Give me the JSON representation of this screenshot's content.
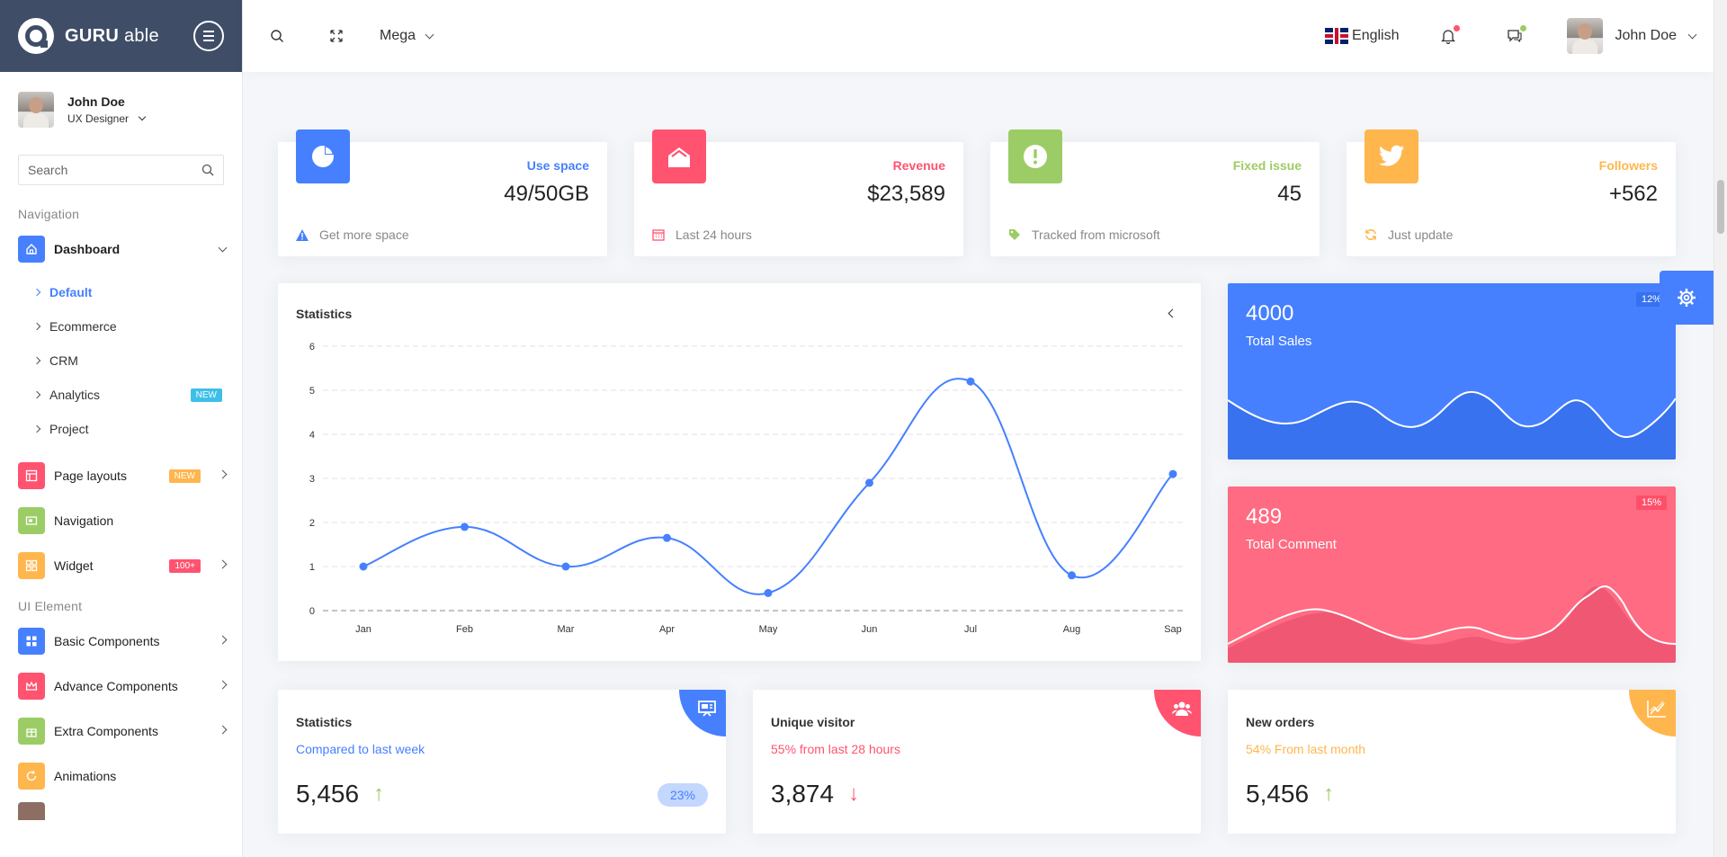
{
  "brand": {
    "name_bold": "GURU",
    "name_light": "able"
  },
  "sidebar": {
    "user": {
      "name": "John Doe",
      "role": "UX Designer"
    },
    "search_placeholder": "Search",
    "section_navigation": "Navigation",
    "section_ui": "UI Element",
    "dashboard": {
      "label": "Dashboard",
      "color": "#4680ff",
      "children": [
        {
          "label": "Default"
        },
        {
          "label": "Ecommerce"
        },
        {
          "label": "CRM"
        },
        {
          "label": "Analytics",
          "badge": "NEW",
          "badge_color": "#3ebfea"
        },
        {
          "label": "Project"
        }
      ]
    },
    "items": [
      {
        "label": "Page layouts",
        "color": "#ff5370",
        "badge": "NEW",
        "badge_color": "#ffb64d",
        "icon": "layout-icon"
      },
      {
        "label": "Navigation",
        "color": "#9ccc65",
        "icon": "nav-icon"
      },
      {
        "label": "Widget",
        "color": "#ffb64d",
        "badge": "100+",
        "badge_color": "#ff5370",
        "icon": "widget-icon"
      }
    ],
    "ui_items": [
      {
        "label": "Basic Components",
        "color": "#4680ff",
        "icon": "grid-icon"
      },
      {
        "label": "Advance Components",
        "color": "#ff5370",
        "icon": "crown-icon"
      },
      {
        "label": "Extra Components",
        "color": "#9ccc65",
        "icon": "gift-icon"
      },
      {
        "label": "Animations",
        "color": "#ffb64d",
        "icon": "refresh-icon"
      }
    ]
  },
  "header": {
    "mega_label": "Mega",
    "language": "English",
    "user_name": "John Doe"
  },
  "widgets": [
    {
      "label": "Use space",
      "value": "49/50GB",
      "footer": "Get more space",
      "color": "#4680ff",
      "icon": "pie-icon",
      "footer_icon": "warning-icon"
    },
    {
      "label": "Revenue",
      "value": "$23,589",
      "footer": "Last 24 hours",
      "color": "#ff5370",
      "icon": "home-icon",
      "footer_icon": "calendar-icon"
    },
    {
      "label": "Fixed issue",
      "value": "45",
      "footer": "Tracked from microsoft",
      "color": "#9ccc65",
      "icon": "alert-icon",
      "footer_icon": "tag-icon"
    },
    {
      "label": "Followers",
      "value": "+562",
      "footer": "Just update",
      "color": "#ffb64d",
      "icon": "twitter-icon",
      "footer_icon": "refresh-icon"
    }
  ],
  "statistics_title": "Statistics",
  "chart_data": {
    "type": "line",
    "categories": [
      "Jan",
      "Feb",
      "Mar",
      "Apr",
      "May",
      "Jun",
      "Jul",
      "Aug",
      "Sap"
    ],
    "values": [
      1,
      1.9,
      1,
      1.65,
      0.4,
      2.9,
      5.2,
      0.8,
      3.1
    ],
    "ylim": [
      0,
      6
    ],
    "yticks": [
      "0",
      "1",
      "2",
      "3",
      "4",
      "5",
      "6"
    ],
    "grid": true,
    "color": "#4680ff"
  },
  "sales": {
    "value": "4000",
    "caption": "Total Sales",
    "percent": "12%",
    "color": "#4680ff"
  },
  "comments": {
    "value": "489",
    "caption": "Total Comment",
    "percent": "15%",
    "color": "#ff5370"
  },
  "bottom": [
    {
      "title": "Statistics",
      "subtitle": "Compared to last week",
      "value": "5,456",
      "trend": "up",
      "pill": "23%",
      "color": "#4680ff",
      "icon": "presentation-icon"
    },
    {
      "title": "Unique visitor",
      "subtitle": "55% from last 28 hours",
      "value": "3,874",
      "trend": "down",
      "color": "#ff5370",
      "icon": "users-icon"
    },
    {
      "title": "New orders",
      "subtitle": "54% From last month",
      "value": "5,456",
      "trend": "up",
      "color": "#ffb64d",
      "icon": "chart-line-icon"
    }
  ]
}
